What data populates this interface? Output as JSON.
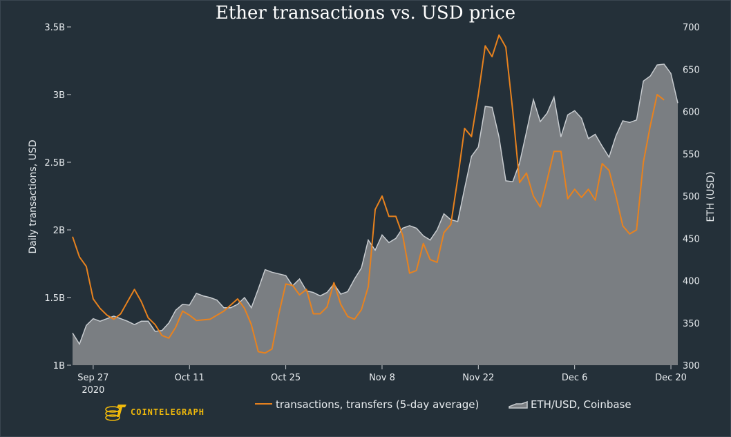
{
  "colors": {
    "background": "#243039",
    "transactions_line": "#e8821e",
    "price_area_fill": "#7a7e82",
    "price_area_line": "#c8ccd0",
    "text": "#e8ecef",
    "logo": "#f0b90b"
  },
  "brand": {
    "logo_text": "COINTELEGRAPH",
    "logo_icon": "cointelegraph-logo-icon"
  },
  "chart_data": {
    "type": "line",
    "title": "Ether transactions vs. USD price",
    "xlabel": "",
    "ylabel": "Daily transactions, USD",
    "y2label": "ETH (USD)",
    "xlim": [
      "2020-09-24",
      "2020-12-21"
    ],
    "ylim": [
      1000000000,
      3500000000
    ],
    "y2lim": [
      300,
      700
    ],
    "xticks": [
      {
        "date": "2020-09-27",
        "label": "Sep 27",
        "sublabel": "2020"
      },
      {
        "date": "2020-10-11",
        "label": "Oct 11"
      },
      {
        "date": "2020-10-25",
        "label": "Oct 25"
      },
      {
        "date": "2020-11-08",
        "label": "Nov 8"
      },
      {
        "date": "2020-11-22",
        "label": "Nov 22"
      },
      {
        "date": "2020-12-06",
        "label": "Dec 6"
      },
      {
        "date": "2020-12-20",
        "label": "Dec 20"
      }
    ],
    "yticks": [
      {
        "value": 1000000000,
        "label": "1B"
      },
      {
        "value": 1500000000,
        "label": "1.5B"
      },
      {
        "value": 2000000000,
        "label": "2B"
      },
      {
        "value": 2500000000,
        "label": "2.5B"
      },
      {
        "value": 3000000000,
        "label": "3B"
      },
      {
        "value": 3500000000,
        "label": "3.5B"
      }
    ],
    "y2ticks": [
      {
        "value": 300,
        "label": "300"
      },
      {
        "value": 350,
        "label": "350"
      },
      {
        "value": 400,
        "label": "400"
      },
      {
        "value": 450,
        "label": "450"
      },
      {
        "value": 500,
        "label": "500"
      },
      {
        "value": 550,
        "label": "550"
      },
      {
        "value": 600,
        "label": "600"
      },
      {
        "value": 650,
        "label": "650"
      },
      {
        "value": 700,
        "label": "700"
      }
    ],
    "grid": false,
    "legend": "bottom",
    "series": [
      {
        "name": "transactions, transfers (5-day average)",
        "type": "line",
        "axis": "left",
        "color": "#e8821e",
        "points": [
          [
            "2020-09-24",
            1950000000
          ],
          [
            "2020-09-25",
            1800000000
          ],
          [
            "2020-09-26",
            1730000000
          ],
          [
            "2020-09-27",
            1490000000
          ],
          [
            "2020-09-28",
            1420000000
          ],
          [
            "2020-09-29",
            1370000000
          ],
          [
            "2020-09-30",
            1340000000
          ],
          [
            "2020-10-01",
            1380000000
          ],
          [
            "2020-10-02",
            1470000000
          ],
          [
            "2020-10-03",
            1560000000
          ],
          [
            "2020-10-04",
            1470000000
          ],
          [
            "2020-10-05",
            1350000000
          ],
          [
            "2020-10-06",
            1300000000
          ],
          [
            "2020-10-07",
            1220000000
          ],
          [
            "2020-10-08",
            1200000000
          ],
          [
            "2020-10-09",
            1280000000
          ],
          [
            "2020-10-10",
            1400000000
          ],
          [
            "2020-10-11",
            1370000000
          ],
          [
            "2020-10-12",
            1330000000
          ],
          [
            "2020-10-14",
            1340000000
          ],
          [
            "2020-10-16",
            1400000000
          ],
          [
            "2020-10-18",
            1490000000
          ],
          [
            "2020-10-19",
            1420000000
          ],
          [
            "2020-10-20",
            1300000000
          ],
          [
            "2020-10-21",
            1100000000
          ],
          [
            "2020-10-22",
            1090000000
          ],
          [
            "2020-10-23",
            1120000000
          ],
          [
            "2020-10-24",
            1380000000
          ],
          [
            "2020-10-25",
            1600000000
          ],
          [
            "2020-10-26",
            1590000000
          ],
          [
            "2020-10-27",
            1520000000
          ],
          [
            "2020-10-28",
            1560000000
          ],
          [
            "2020-10-29",
            1380000000
          ],
          [
            "2020-10-30",
            1380000000
          ],
          [
            "2020-10-31",
            1430000000
          ],
          [
            "2020-11-01",
            1610000000
          ],
          [
            "2020-11-02",
            1450000000
          ],
          [
            "2020-11-03",
            1360000000
          ],
          [
            "2020-11-04",
            1340000000
          ],
          [
            "2020-11-05",
            1410000000
          ],
          [
            "2020-11-06",
            1580000000
          ],
          [
            "2020-11-07",
            2150000000
          ],
          [
            "2020-11-08",
            2250000000
          ],
          [
            "2020-11-09",
            2100000000
          ],
          [
            "2020-11-10",
            2100000000
          ],
          [
            "2020-11-11",
            1960000000
          ],
          [
            "2020-11-12",
            1680000000
          ],
          [
            "2020-11-13",
            1700000000
          ],
          [
            "2020-11-14",
            1900000000
          ],
          [
            "2020-11-15",
            1780000000
          ],
          [
            "2020-11-16",
            1760000000
          ],
          [
            "2020-11-17",
            1980000000
          ],
          [
            "2020-11-18",
            2040000000
          ],
          [
            "2020-11-19",
            2380000000
          ],
          [
            "2020-11-20",
            2750000000
          ],
          [
            "2020-11-21",
            2690000000
          ],
          [
            "2020-11-22",
            3000000000
          ],
          [
            "2020-11-23",
            3360000000
          ],
          [
            "2020-11-24",
            3280000000
          ],
          [
            "2020-11-25",
            3440000000
          ],
          [
            "2020-11-26",
            3350000000
          ],
          [
            "2020-11-27",
            2880000000
          ],
          [
            "2020-11-28",
            2350000000
          ],
          [
            "2020-11-29",
            2420000000
          ],
          [
            "2020-11-30",
            2250000000
          ],
          [
            "2020-12-01",
            2170000000
          ],
          [
            "2020-12-02",
            2370000000
          ],
          [
            "2020-12-03",
            2580000000
          ],
          [
            "2020-12-04",
            2580000000
          ],
          [
            "2020-12-05",
            2230000000
          ],
          [
            "2020-12-06",
            2300000000
          ],
          [
            "2020-12-07",
            2240000000
          ],
          [
            "2020-12-08",
            2300000000
          ],
          [
            "2020-12-09",
            2220000000
          ],
          [
            "2020-12-10",
            2490000000
          ],
          [
            "2020-12-11",
            2440000000
          ],
          [
            "2020-12-12",
            2250000000
          ],
          [
            "2020-12-13",
            2030000000
          ],
          [
            "2020-12-14",
            1970000000
          ],
          [
            "2020-12-15",
            2000000000
          ],
          [
            "2020-12-16",
            2500000000
          ],
          [
            "2020-12-17",
            2770000000
          ],
          [
            "2020-12-18",
            3000000000
          ],
          [
            "2020-12-19",
            2960000000
          ]
        ]
      },
      {
        "name": "ETH/USD, Coinbase",
        "type": "area",
        "axis": "right",
        "color": "#7a7e82",
        "points": [
          [
            "2020-09-24",
            338
          ],
          [
            "2020-09-25",
            325
          ],
          [
            "2020-09-26",
            347
          ],
          [
            "2020-09-27",
            355
          ],
          [
            "2020-09-28",
            352
          ],
          [
            "2020-09-29",
            355
          ],
          [
            "2020-09-30",
            358
          ],
          [
            "2020-10-01",
            355
          ],
          [
            "2020-10-02",
            352
          ],
          [
            "2020-10-03",
            348
          ],
          [
            "2020-10-04",
            352
          ],
          [
            "2020-10-05",
            352
          ],
          [
            "2020-10-06",
            340
          ],
          [
            "2020-10-07",
            341
          ],
          [
            "2020-10-08",
            350
          ],
          [
            "2020-10-09",
            365
          ],
          [
            "2020-10-10",
            372
          ],
          [
            "2020-10-11",
            371
          ],
          [
            "2020-10-12",
            385
          ],
          [
            "2020-10-13",
            382
          ],
          [
            "2020-10-14",
            380
          ],
          [
            "2020-10-15",
            377
          ],
          [
            "2020-10-16",
            368
          ],
          [
            "2020-10-17",
            368
          ],
          [
            "2020-10-18",
            372
          ],
          [
            "2020-10-19",
            380
          ],
          [
            "2020-10-20",
            368
          ],
          [
            "2020-10-21",
            390
          ],
          [
            "2020-10-22",
            413
          ],
          [
            "2020-10-23",
            410
          ],
          [
            "2020-10-24",
            408
          ],
          [
            "2020-10-25",
            406
          ],
          [
            "2020-10-26",
            394
          ],
          [
            "2020-10-27",
            402
          ],
          [
            "2020-10-28",
            388
          ],
          [
            "2020-10-29",
            386
          ],
          [
            "2020-10-30",
            382
          ],
          [
            "2020-10-31",
            386
          ],
          [
            "2020-11-01",
            396
          ],
          [
            "2020-11-02",
            384
          ],
          [
            "2020-11-03",
            387
          ],
          [
            "2020-11-04",
            402
          ],
          [
            "2020-11-05",
            415
          ],
          [
            "2020-11-06",
            448
          ],
          [
            "2020-11-07",
            436
          ],
          [
            "2020-11-08",
            454
          ],
          [
            "2020-11-09",
            445
          ],
          [
            "2020-11-10",
            450
          ],
          [
            "2020-11-11",
            462
          ],
          [
            "2020-11-12",
            465
          ],
          [
            "2020-11-13",
            462
          ],
          [
            "2020-11-14",
            453
          ],
          [
            "2020-11-15",
            448
          ],
          [
            "2020-11-16",
            460
          ],
          [
            "2020-11-17",
            479
          ],
          [
            "2020-11-18",
            472
          ],
          [
            "2020-11-19",
            470
          ],
          [
            "2020-11-20",
            509
          ],
          [
            "2020-11-21",
            547
          ],
          [
            "2020-11-22",
            558
          ],
          [
            "2020-11-23",
            606
          ],
          [
            "2020-11-24",
            605
          ],
          [
            "2020-11-25",
            570
          ],
          [
            "2020-11-26",
            518
          ],
          [
            "2020-11-27",
            517
          ],
          [
            "2020-11-28",
            539
          ],
          [
            "2020-11-29",
            576
          ],
          [
            "2020-11-30",
            614
          ],
          [
            "2020-12-01",
            588
          ],
          [
            "2020-12-02",
            598
          ],
          [
            "2020-12-03",
            617
          ],
          [
            "2020-12-04",
            570
          ],
          [
            "2020-12-05",
            596
          ],
          [
            "2020-12-06",
            601
          ],
          [
            "2020-12-07",
            592
          ],
          [
            "2020-12-08",
            568
          ],
          [
            "2020-12-09",
            573
          ],
          [
            "2020-12-10",
            559
          ],
          [
            "2020-12-11",
            546
          ],
          [
            "2020-12-12",
            571
          ],
          [
            "2020-12-13",
            589
          ],
          [
            "2020-12-14",
            587
          ],
          [
            "2020-12-15",
            590
          ],
          [
            "2020-12-16",
            636
          ],
          [
            "2020-12-17",
            642
          ],
          [
            "2020-12-18",
            655
          ],
          [
            "2020-12-19",
            656
          ],
          [
            "2020-12-20",
            645
          ],
          [
            "2020-12-21",
            610
          ]
        ]
      }
    ]
  }
}
